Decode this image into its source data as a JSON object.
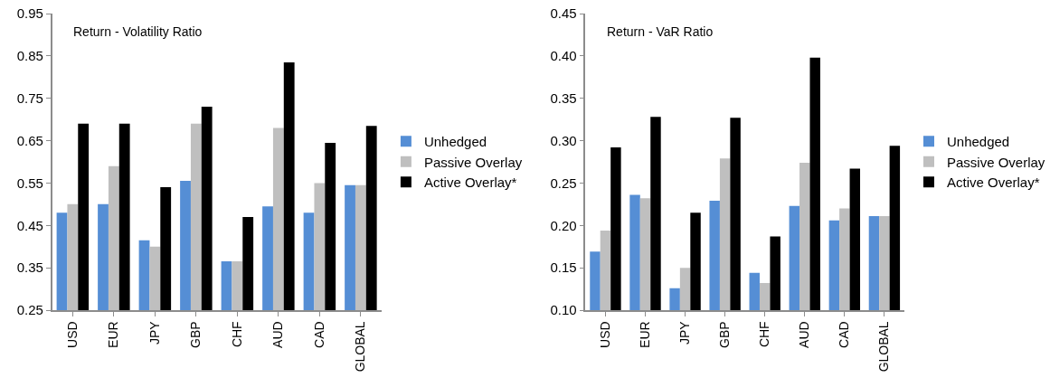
{
  "chart_data": [
    {
      "type": "bar",
      "title": "Return - Volatility Ratio",
      "categories": [
        "USD",
        "EUR",
        "JPY",
        "GBP",
        "CHF",
        "AUD",
        "CAD",
        "GLOBAL"
      ],
      "ylim": [
        0.25,
        0.95
      ],
      "yticks": [
        {
          "value": 0.25,
          "label": "0.25"
        },
        {
          "value": 0.35,
          "label": "0.35"
        },
        {
          "value": 0.45,
          "label": "0.45"
        },
        {
          "value": 0.55,
          "label": "0.55"
        },
        {
          "value": 0.65,
          "label": "0.65"
        },
        {
          "value": 0.75,
          "label": "0.75"
        },
        {
          "value": 0.85,
          "label": "0.85"
        },
        {
          "value": 0.95,
          "label": "0.95"
        }
      ],
      "grid": false,
      "legend": "right",
      "series": [
        {
          "name": "Unhedged",
          "color": "#558ed5",
          "values": [
            0.48,
            0.5,
            0.415,
            0.555,
            0.365,
            0.495,
            0.48,
            0.545
          ]
        },
        {
          "name": "Passive Overlay",
          "color": "#bfbfbf",
          "values": [
            0.5,
            0.59,
            0.4,
            0.69,
            0.365,
            0.68,
            0.55,
            0.545
          ]
        },
        {
          "name": "Active Overlay*",
          "color": "#000000",
          "values": [
            0.69,
            0.69,
            0.54,
            0.73,
            0.47,
            0.835,
            0.645,
            0.685
          ]
        }
      ]
    },
    {
      "type": "bar",
      "title": "Return - VaR Ratio",
      "categories": [
        "USD",
        "EUR",
        "JPY",
        "GBP",
        "CHF",
        "AUD",
        "CAD",
        "GLOBAL"
      ],
      "ylim": [
        0.1,
        0.45
      ],
      "yticks": [
        {
          "value": 0.1,
          "label": "0.10"
        },
        {
          "value": 0.15,
          "label": "0.15"
        },
        {
          "value": 0.2,
          "label": "0.20"
        },
        {
          "value": 0.25,
          "label": "0.25"
        },
        {
          "value": 0.3,
          "label": "0.30"
        },
        {
          "value": 0.35,
          "label": "0.35"
        },
        {
          "value": 0.4,
          "label": "0.40"
        },
        {
          "value": 0.45,
          "label": "0.45"
        }
      ],
      "grid": false,
      "legend": "right",
      "series": [
        {
          "name": "Unhedged",
          "color": "#558ed5",
          "values": [
            0.169,
            0.236,
            0.126,
            0.229,
            0.144,
            0.223,
            0.206,
            0.211
          ]
        },
        {
          "name": "Passive Overlay",
          "color": "#bfbfbf",
          "values": [
            0.194,
            0.232,
            0.15,
            0.279,
            0.132,
            0.274,
            0.22,
            0.211
          ]
        },
        {
          "name": "Active Overlay*",
          "color": "#000000",
          "values": [
            0.292,
            0.328,
            0.215,
            0.327,
            0.187,
            0.398,
            0.267,
            0.294
          ]
        }
      ]
    }
  ]
}
